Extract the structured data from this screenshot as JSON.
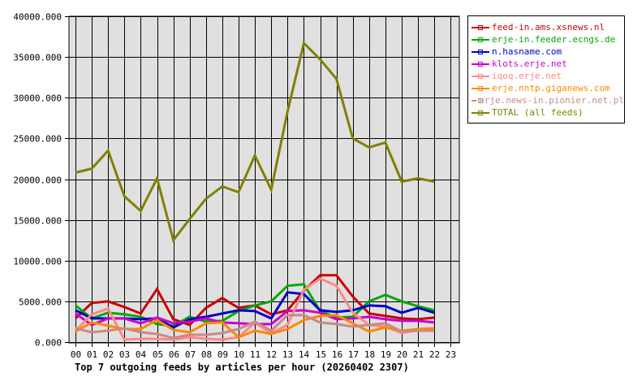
{
  "chart_data": {
    "type": "line",
    "title": "Top 7 outgoing feeds by articles per hour (20260402 2307)",
    "xlabel": "",
    "ylabel": "",
    "ylim": [
      0,
      40000
    ],
    "grid": true,
    "legend_position": "right",
    "x": [
      "00",
      "01",
      "02",
      "03",
      "04",
      "05",
      "06",
      "07",
      "08",
      "09",
      "10",
      "11",
      "12",
      "13",
      "14",
      "15",
      "16",
      "17",
      "18",
      "19",
      "20",
      "21",
      "22",
      "23"
    ],
    "yticks": [
      "0.000",
      "5000.000",
      "10000.000",
      "15000.000",
      "20000.000",
      "25000.000",
      "30000.000",
      "35000.000",
      "40000.000"
    ],
    "series": [
      {
        "name": "feed-in.ams.xsnews.nl",
        "color": "#cc0000",
        "values": [
          2900,
          4800,
          5000,
          4300,
          3500,
          6500,
          2800,
          2100,
          4200,
          5400,
          4200,
          4500,
          3400,
          3900,
          6300,
          8200,
          8200,
          5600,
          3500,
          3200,
          2900,
          2800,
          3000
        ]
      },
      {
        "name": "erje-in.feeder.ecngs.de",
        "color": "#00aa00",
        "values": [
          4500,
          2900,
          3600,
          3400,
          3100,
          2200,
          2000,
          3100,
          2500,
          2600,
          3800,
          4500,
          5000,
          6900,
          7100,
          3800,
          3000,
          3100,
          5000,
          5800,
          5000,
          4400,
          3900
        ]
      },
      {
        "name": "n.hasname.com",
        "color": "#0000cc",
        "values": [
          3900,
          2900,
          2900,
          2900,
          2800,
          2900,
          1800,
          2800,
          3100,
          3500,
          3900,
          3800,
          2900,
          6100,
          5900,
          3900,
          3700,
          3900,
          4500,
          4400,
          3600,
          4200,
          3600
        ]
      },
      {
        "name": "klots.erje.net",
        "color": "#cc00cc",
        "values": [
          3500,
          2100,
          2900,
          2900,
          2300,
          3000,
          2300,
          2500,
          2900,
          2400,
          2300,
          2200,
          2200,
          3800,
          3900,
          3600,
          2800,
          2900,
          3100,
          2800,
          2600,
          2600,
          2400
        ]
      },
      {
        "name": "iqoq.erje.net",
        "color": "#ff8888",
        "values": [
          1400,
          3400,
          4100,
          300,
          400,
          400,
          300,
          600,
          400,
          300,
          600,
          2400,
          1100,
          2100,
          6400,
          7800,
          6900,
          3600,
          2100,
          1900,
          1100,
          1500,
          1500
        ]
      },
      {
        "name": "erje.nntp.giganews.com",
        "color": "#ff8800",
        "values": [
          1300,
          2400,
          2000,
          1600,
          1600,
          2700,
          1500,
          1200,
          2300,
          2400,
          600,
          1400,
          1000,
          1600,
          2700,
          3200,
          3300,
          2300,
          1300,
          1800,
          1400,
          1600,
          1700
        ]
      },
      {
        "name": "erje.news-in.pionier.net.pl",
        "color": "#cc8888",
        "values": [
          1700,
          1200,
          1400,
          1700,
          1200,
          1000,
          500,
          900,
          900,
          1100,
          1600,
          2500,
          1400,
          3300,
          3300,
          2400,
          2200,
          1900,
          2100,
          2300,
          1300,
          1400,
          1400
        ]
      },
      {
        "name": "TOTAL (all feeds)",
        "color": "#808000",
        "values": [
          20800,
          21300,
          23500,
          17900,
          16100,
          20100,
          12500,
          15100,
          17600,
          19100,
          18400,
          22900,
          18700,
          28300,
          36700,
          34700,
          32300,
          25000,
          23900,
          24500,
          19700,
          20100,
          19700
        ]
      }
    ]
  },
  "legend": {
    "items": [
      {
        "label": "feed-in.ams.xsnews.nl",
        "color": "#cc0000"
      },
      {
        "label": "erje-in.feeder.ecngs.de",
        "color": "#00aa00"
      },
      {
        "label": "n.hasname.com",
        "color": "#0000cc"
      },
      {
        "label": "klots.erje.net",
        "color": "#cc00cc"
      },
      {
        "label": "iqoq.erje.net",
        "color": "#ff8888"
      },
      {
        "label": "erje.nntp.giganews.com",
        "color": "#ff8800"
      },
      {
        "label": "erje.news-in.pionier.net.pl",
        "color": "#cc8888"
      },
      {
        "label": "TOTAL (all feeds)",
        "color": "#808000"
      }
    ]
  },
  "colors": {
    "plot_background": "#e0e0e0",
    "grid": "#000000",
    "page_background": "#ffffff"
  }
}
